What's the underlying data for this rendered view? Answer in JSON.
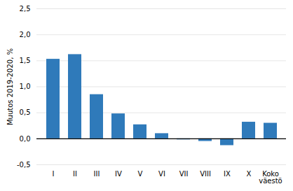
{
  "chart_data": {
    "type": "bar",
    "categories": [
      "I",
      "II",
      "III",
      "IV",
      "V",
      "VI",
      "VII",
      "VIII",
      "IX",
      "X",
      "Koko\nväestö"
    ],
    "values": [
      1.53,
      1.62,
      0.85,
      0.48,
      0.27,
      0.1,
      -0.02,
      -0.05,
      -0.13,
      0.32,
      0.3
    ],
    "color": "#2f7aba",
    "ylabel": "Muutos 2019-2020, %",
    "ylim": [
      -0.5,
      2.5
    ],
    "yticks": [
      {
        "value": -0.5,
        "label": "-0,5"
      },
      {
        "value": 0.0,
        "label": "0,0"
      },
      {
        "value": 0.5,
        "label": "0,5"
      },
      {
        "value": 1.0,
        "label": "1,0"
      },
      {
        "value": 1.5,
        "label": "1,5"
      },
      {
        "value": 2.0,
        "label": "2,0"
      },
      {
        "value": 2.5,
        "label": "2,5"
      }
    ],
    "grid": true
  }
}
